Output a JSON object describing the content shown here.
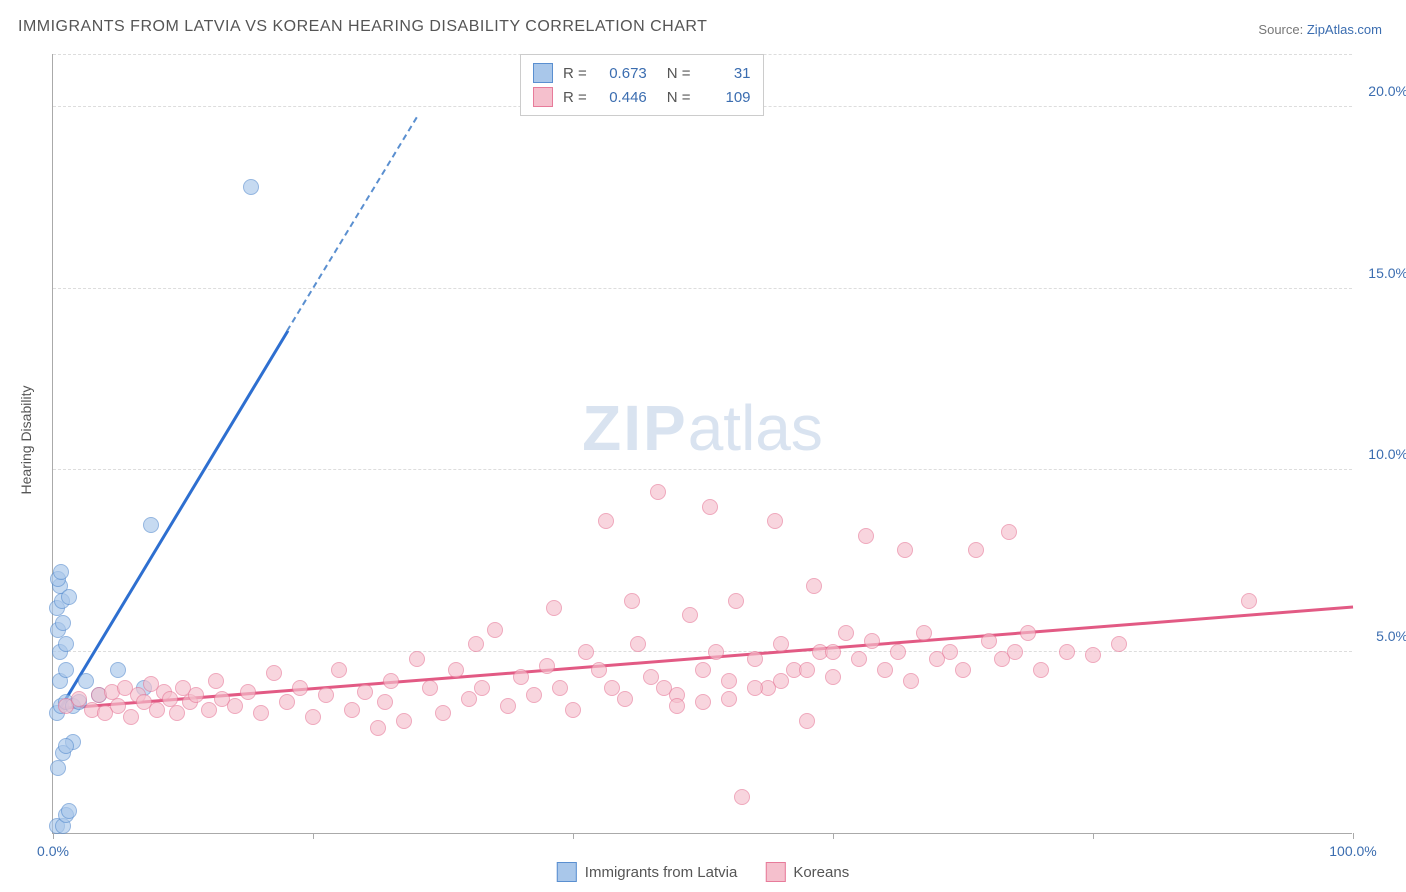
{
  "title": "IMMIGRANTS FROM LATVIA VS KOREAN HEARING DISABILITY CORRELATION CHART",
  "source_label": "Source:",
  "source_name": "ZipAtlas.com",
  "y_axis_title": "Hearing Disability",
  "watermark_zip": "ZIP",
  "watermark_atlas": "atlas",
  "chart": {
    "type": "scatter",
    "xlim": [
      0,
      100
    ],
    "ylim": [
      0,
      21.5
    ],
    "x_ticks": [
      0,
      20,
      40,
      60,
      80,
      100
    ],
    "x_tick_labels": [
      "0.0%",
      "",
      "",
      "",
      "",
      "100.0%"
    ],
    "y_ticks": [
      5,
      10,
      15,
      20
    ],
    "y_tick_labels": [
      "5.0%",
      "10.0%",
      "15.0%",
      "20.0%"
    ],
    "background_color": "#ffffff",
    "grid_color": "#dddddd",
    "axis_color": "#aaaaaa",
    "series": [
      {
        "name": "Immigrants from Latvia",
        "color_fill": "#a9c7ea",
        "color_stroke": "#5a8fd0",
        "trend_color": "#2e6fd0",
        "R": "0.673",
        "N": "31",
        "marker_size": 16,
        "trend": {
          "x1": 0.5,
          "y1": 3.4,
          "x2": 18,
          "y2": 13.8,
          "dash_to_x": 28,
          "dash_to_y": 19.7
        },
        "points": [
          [
            0.3,
            0.2
          ],
          [
            0.8,
            0.2
          ],
          [
            1.0,
            0.5
          ],
          [
            1.2,
            0.6
          ],
          [
            0.4,
            1.8
          ],
          [
            0.8,
            2.2
          ],
          [
            1.5,
            2.5
          ],
          [
            1.0,
            2.4
          ],
          [
            0.3,
            3.3
          ],
          [
            0.6,
            3.5
          ],
          [
            1.0,
            3.6
          ],
          [
            1.5,
            3.5
          ],
          [
            2.0,
            3.6
          ],
          [
            0.5,
            4.2
          ],
          [
            1.0,
            4.5
          ],
          [
            0.5,
            5.0
          ],
          [
            1.0,
            5.2
          ],
          [
            0.4,
            5.6
          ],
          [
            0.8,
            5.8
          ],
          [
            0.3,
            6.2
          ],
          [
            0.7,
            6.4
          ],
          [
            0.5,
            6.8
          ],
          [
            0.4,
            7.0
          ],
          [
            0.6,
            7.2
          ],
          [
            1.2,
            6.5
          ],
          [
            2.5,
            4.2
          ],
          [
            3.5,
            3.8
          ],
          [
            5.0,
            4.5
          ],
          [
            7.0,
            4.0
          ],
          [
            7.5,
            8.5
          ],
          [
            15.2,
            17.8
          ]
        ]
      },
      {
        "name": "Koreans",
        "color_fill": "#f5c0cd",
        "color_stroke": "#e77b9a",
        "trend_color": "#e25a84",
        "R": "0.446",
        "N": "109",
        "marker_size": 16,
        "trend": {
          "x1": 0.5,
          "y1": 3.4,
          "x2": 100,
          "y2": 6.2
        },
        "points": [
          [
            1,
            3.5
          ],
          [
            2,
            3.7
          ],
          [
            3,
            3.4
          ],
          [
            3.5,
            3.8
          ],
          [
            4,
            3.3
          ],
          [
            4.5,
            3.9
          ],
          [
            5,
            3.5
          ],
          [
            5.5,
            4.0
          ],
          [
            6,
            3.2
          ],
          [
            6.5,
            3.8
          ],
          [
            7,
            3.6
          ],
          [
            7.5,
            4.1
          ],
          [
            8,
            3.4
          ],
          [
            8.5,
            3.9
          ],
          [
            9,
            3.7
          ],
          [
            9.5,
            3.3
          ],
          [
            10,
            4.0
          ],
          [
            10.5,
            3.6
          ],
          [
            11,
            3.8
          ],
          [
            12,
            3.4
          ],
          [
            12.5,
            4.2
          ],
          [
            13,
            3.7
          ],
          [
            14,
            3.5
          ],
          [
            15,
            3.9
          ],
          [
            16,
            3.3
          ],
          [
            17,
            4.4
          ],
          [
            18,
            3.6
          ],
          [
            19,
            4.0
          ],
          [
            20,
            3.2
          ],
          [
            21,
            3.8
          ],
          [
            22,
            4.5
          ],
          [
            23,
            3.4
          ],
          [
            24,
            3.9
          ],
          [
            25,
            2.9
          ],
          [
            25.5,
            3.6
          ],
          [
            26,
            4.2
          ],
          [
            27,
            3.1
          ],
          [
            28,
            4.8
          ],
          [
            29,
            4.0
          ],
          [
            30,
            3.3
          ],
          [
            31,
            4.5
          ],
          [
            32,
            3.7
          ],
          [
            32.5,
            5.2
          ],
          [
            33,
            4.0
          ],
          [
            34,
            5.6
          ],
          [
            35,
            3.5
          ],
          [
            36,
            4.3
          ],
          [
            37,
            3.8
          ],
          [
            38,
            4.6
          ],
          [
            38.5,
            6.2
          ],
          [
            39,
            4.0
          ],
          [
            40,
            3.4
          ],
          [
            41,
            5.0
          ],
          [
            42,
            4.5
          ],
          [
            42.5,
            8.6
          ],
          [
            43,
            4.0
          ],
          [
            44,
            3.7
          ],
          [
            44.5,
            6.4
          ],
          [
            45,
            5.2
          ],
          [
            46,
            4.3
          ],
          [
            46.5,
            9.4
          ],
          [
            47,
            4.0
          ],
          [
            48,
            3.8
          ],
          [
            49,
            6.0
          ],
          [
            50,
            4.5
          ],
          [
            50.5,
            9.0
          ],
          [
            51,
            5.0
          ],
          [
            52,
            4.2
          ],
          [
            52.5,
            6.4
          ],
          [
            53,
            1.0
          ],
          [
            54,
            4.8
          ],
          [
            55,
            4.0
          ],
          [
            55.5,
            8.6
          ],
          [
            56,
            5.2
          ],
          [
            57,
            4.5
          ],
          [
            58,
            3.1
          ],
          [
            58.5,
            6.8
          ],
          [
            59,
            5.0
          ],
          [
            60,
            4.3
          ],
          [
            61,
            5.5
          ],
          [
            62,
            4.8
          ],
          [
            62.5,
            8.2
          ],
          [
            63,
            5.3
          ],
          [
            64,
            4.5
          ],
          [
            65,
            5.0
          ],
          [
            65.5,
            7.8
          ],
          [
            66,
            4.2
          ],
          [
            67,
            5.5
          ],
          [
            68,
            4.8
          ],
          [
            69,
            5.0
          ],
          [
            70,
            4.5
          ],
          [
            71,
            7.8
          ],
          [
            72,
            5.3
          ],
          [
            73,
            4.8
          ],
          [
            73.5,
            8.3
          ],
          [
            74,
            5.0
          ],
          [
            75,
            5.5
          ],
          [
            76,
            4.5
          ],
          [
            78,
            5.0
          ],
          [
            80,
            4.9
          ],
          [
            82,
            5.2
          ],
          [
            92,
            6.4
          ],
          [
            48,
            3.5
          ],
          [
            50,
            3.6
          ],
          [
            52,
            3.7
          ],
          [
            54,
            4.0
          ],
          [
            56,
            4.2
          ],
          [
            58,
            4.5
          ],
          [
            60,
            5.0
          ]
        ]
      }
    ]
  },
  "legend_top": {
    "R_label": "R =",
    "N_label": "N ="
  },
  "legend_bottom": [
    {
      "label": "Immigrants from Latvia",
      "fill": "#a9c7ea",
      "stroke": "#5a8fd0"
    },
    {
      "label": "Koreans",
      "fill": "#f5c0cd",
      "stroke": "#e77b9a"
    }
  ]
}
